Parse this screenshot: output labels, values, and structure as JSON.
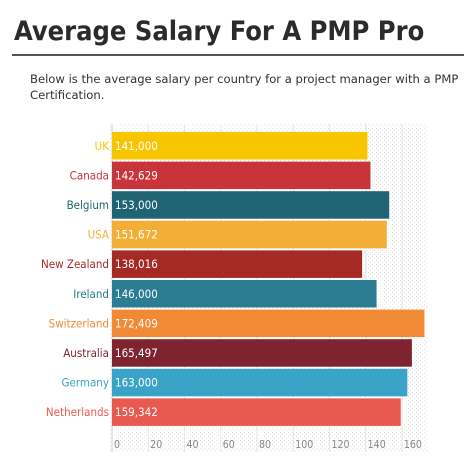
{
  "page": {
    "title": "Average Salary For A PMP Pro",
    "subtitle": "Below is the average salary per country for a project manager with a PMP Certification."
  },
  "chart_data": {
    "type": "bar",
    "orientation": "horizontal",
    "title": "",
    "xlabel": "",
    "ylabel": "",
    "categories": [
      "UK",
      "Canada",
      "Belgium",
      "USA",
      "New Zealand",
      "Ireland",
      "Switzerland",
      "Australia",
      "Germany",
      "Netherlands"
    ],
    "values": [
      141000,
      142629,
      153000,
      151672,
      138016,
      146000,
      172409,
      165497,
      163000,
      159342
    ],
    "value_labels": [
      "141,000",
      "142,629",
      "153,000",
      "151,672",
      "138,016",
      "146,000",
      "172,409",
      "165,497",
      "163,000",
      "159,342"
    ],
    "colors": [
      "#f7c600",
      "#c8343a",
      "#1f6473",
      "#f3ae36",
      "#a52a23",
      "#2c7c93",
      "#f08a34",
      "#7d2430",
      "#3aa3c8",
      "#e85a4f"
    ],
    "x_ticks": [
      0,
      20,
      40,
      60,
      80,
      100,
      120,
      140,
      160
    ],
    "x_unit_scale": 1000,
    "xlim": [
      0,
      170
    ],
    "grid": true,
    "legend": "none"
  }
}
